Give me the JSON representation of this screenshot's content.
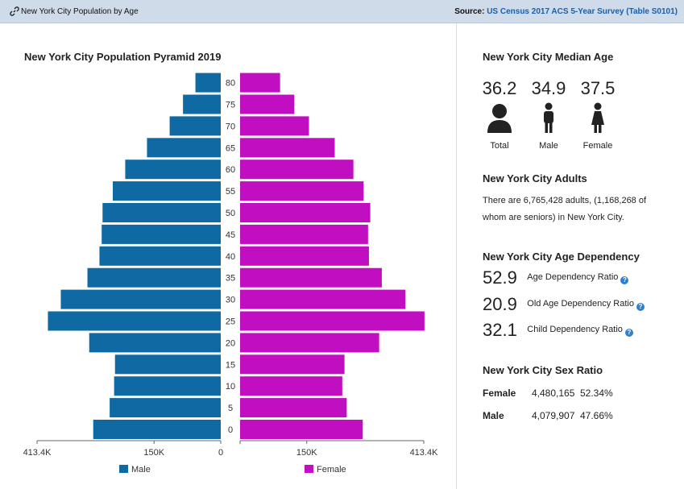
{
  "header": {
    "title": "New York City Population by Age",
    "source_label": "Source:",
    "source_link": "US Census 2017 ACS 5-Year Survey (Table S0101)"
  },
  "chart_data": {
    "type": "bar",
    "title": "New York City Population Pyramid 2019",
    "orientation": "horizontal",
    "categories": [
      "0",
      "5",
      "10",
      "15",
      "20",
      "25",
      "30",
      "35",
      "40",
      "45",
      "50",
      "55",
      "60",
      "65",
      "70",
      "75",
      "80"
    ],
    "series": [
      {
        "name": "Male",
        "color": "#0f6aa3",
        "values": [
          287000,
          250000,
          240000,
          238000,
          296000,
          389000,
          360000,
          300000,
          273000,
          268000,
          266000,
          243000,
          215000,
          166000,
          115000,
          85000,
          57000
        ]
      },
      {
        "name": "Female",
        "color": "#c00ec0",
        "values": [
          276000,
          240000,
          230000,
          235000,
          313000,
          415000,
          372000,
          319000,
          290000,
          288000,
          293000,
          278000,
          255000,
          213000,
          155000,
          122000,
          90000
        ]
      }
    ],
    "xlim": [
      0,
      413400
    ],
    "x_ticks_left": [
      "413.4K",
      "150K",
      "0"
    ],
    "x_ticks_right": [
      "150K",
      "413.4K"
    ],
    "tick_values_left": [
      413400,
      150000,
      0
    ],
    "tick_values_right": [
      150000,
      413400
    ],
    "legend": [
      "Male",
      "Female"
    ],
    "legend_position": "bottom"
  },
  "median_age": {
    "heading": "New York City Median Age",
    "total": {
      "value": "36.2",
      "label": "Total",
      "icon": "person-icon"
    },
    "male": {
      "value": "34.9",
      "label": "Male",
      "icon": "male-icon"
    },
    "female": {
      "value": "37.5",
      "label": "Female",
      "icon": "female-icon"
    }
  },
  "adults": {
    "heading": "New York City Adults",
    "line1": "There are 6,765,428 adults, (1,168,268 of",
    "line2": "whom are seniors) in New York City."
  },
  "dependency": {
    "heading": "New York City Age Dependency",
    "items": [
      {
        "value": "52.9",
        "label": "Age Dependency Ratio"
      },
      {
        "value": "20.9",
        "label": "Old Age Dependency Ratio"
      },
      {
        "value": "32.1",
        "label": "Child Dependency Ratio"
      }
    ],
    "help_glyph": "?"
  },
  "sex_ratio": {
    "heading": "New York City Sex Ratio",
    "rows": [
      {
        "label": "Female",
        "count": "4,480,165",
        "pct": "52.34%"
      },
      {
        "label": "Male",
        "count": "4,079,907",
        "pct": "47.66%"
      }
    ]
  }
}
